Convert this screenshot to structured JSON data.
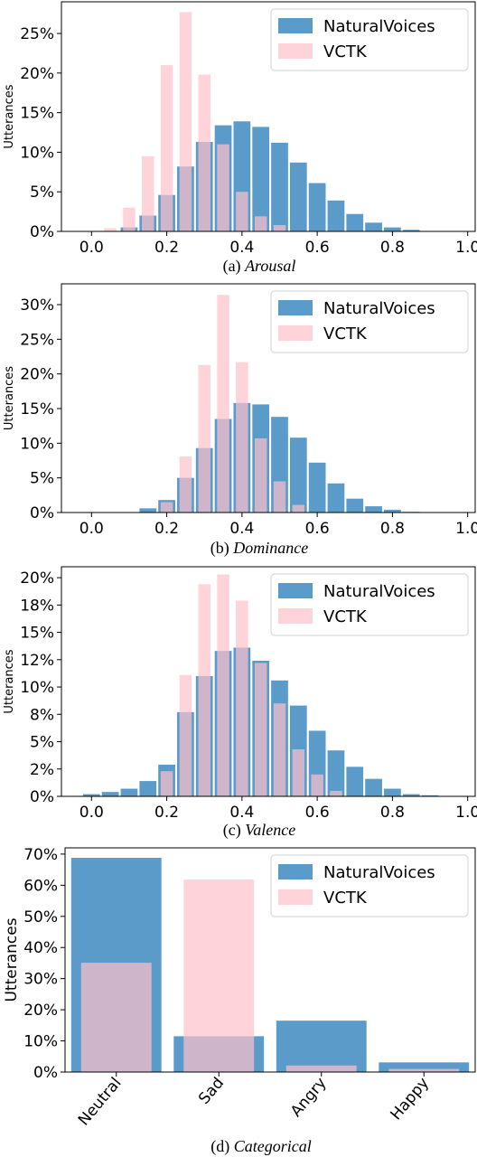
{
  "colors": {
    "natural": "#5b9bc9",
    "vctk": "#ffc0cb"
  },
  "chart_data": [
    {
      "type": "bar",
      "caption_prefix": "(a) ",
      "caption_name": "Arousal",
      "ylabel": "Utterances",
      "xticks": [
        "0.0",
        "0.2",
        "0.4",
        "0.6",
        "0.8",
        "1.0"
      ],
      "yticks": [
        "0%",
        "5%",
        "10%",
        "15%",
        "20%",
        "25%"
      ],
      "ylim": [
        0,
        29
      ],
      "xlim": [
        -0.08,
        1.02
      ],
      "legend_position": "top-right",
      "bin_width": 0.05,
      "series": [
        {
          "name": "NaturalVoices",
          "x": [
            0.1,
            0.15,
            0.2,
            0.25,
            0.3,
            0.35,
            0.4,
            0.45,
            0.5,
            0.55,
            0.6,
            0.65,
            0.7,
            0.75,
            0.8,
            0.85
          ],
          "values": [
            0.5,
            2.0,
            4.6,
            8.2,
            11.3,
            13.4,
            13.9,
            13.2,
            11.2,
            8.7,
            6.1,
            3.9,
            2.2,
            1.1,
            0.5,
            0.2
          ]
        },
        {
          "name": "VCTK",
          "x": [
            0.05,
            0.1,
            0.15,
            0.2,
            0.25,
            0.3,
            0.35,
            0.4,
            0.45,
            0.5
          ],
          "values": [
            0.4,
            3.0,
            9.5,
            21.0,
            27.7,
            19.8,
            11.0,
            5.0,
            1.9,
            0.8
          ]
        }
      ]
    },
    {
      "type": "bar",
      "caption_prefix": "(b) ",
      "caption_name": "Dominance",
      "ylabel": "Utterances",
      "xticks": [
        "0.0",
        "0.2",
        "0.4",
        "0.6",
        "0.8",
        "1.0"
      ],
      "yticks": [
        "0%",
        "5%",
        "10%",
        "15%",
        "20%",
        "25%",
        "30%"
      ],
      "ylim": [
        0,
        33
      ],
      "xlim": [
        -0.08,
        1.02
      ],
      "legend_position": "top-right",
      "bin_width": 0.05,
      "series": [
        {
          "name": "NaturalVoices",
          "x": [
            0.15,
            0.2,
            0.25,
            0.3,
            0.35,
            0.4,
            0.45,
            0.5,
            0.55,
            0.6,
            0.65,
            0.7,
            0.75,
            0.8,
            0.85
          ],
          "values": [
            0.6,
            1.8,
            5.0,
            9.3,
            13.5,
            15.8,
            15.6,
            13.8,
            10.8,
            7.2,
            4.2,
            2.0,
            0.9,
            0.4,
            0.1
          ]
        },
        {
          "name": "VCTK",
          "x": [
            0.2,
            0.25,
            0.3,
            0.35,
            0.4,
            0.45,
            0.5,
            0.55
          ],
          "values": [
            1.5,
            8.1,
            21.3,
            31.4,
            21.7,
            10.7,
            4.5,
            1.1
          ]
        }
      ]
    },
    {
      "type": "bar",
      "caption_prefix": "(c) ",
      "caption_name": "Valence",
      "ylabel": "Utterances",
      "xticks": [
        "0.0",
        "0.2",
        "0.4",
        "0.6",
        "0.8",
        "1.0"
      ],
      "yticks": [
        "0%",
        "2%",
        "5%",
        "8%",
        "10%",
        "12%",
        "15%",
        "18%",
        "20%"
      ],
      "ytick_values": [
        0,
        2.5,
        5,
        7.5,
        10,
        12.5,
        15,
        17.5,
        20
      ],
      "ylim": [
        0,
        21
      ],
      "xlim": [
        -0.08,
        1.02
      ],
      "legend_position": "top-right",
      "bin_width": 0.05,
      "series": [
        {
          "name": "NaturalVoices",
          "x": [
            0.0,
            0.05,
            0.1,
            0.15,
            0.2,
            0.25,
            0.3,
            0.35,
            0.4,
            0.45,
            0.5,
            0.55,
            0.6,
            0.65,
            0.7,
            0.75,
            0.8,
            0.85,
            0.9
          ],
          "values": [
            0.2,
            0.4,
            0.7,
            1.4,
            2.9,
            7.7,
            11.0,
            13.3,
            13.6,
            12.4,
            10.6,
            8.3,
            6.0,
            4.2,
            2.7,
            1.6,
            0.7,
            0.2,
            0.1
          ]
        },
        {
          "name": "VCTK",
          "x": [
            0.2,
            0.25,
            0.3,
            0.35,
            0.4,
            0.45,
            0.5,
            0.55,
            0.6,
            0.65
          ],
          "values": [
            2.3,
            11.1,
            19.4,
            20.3,
            17.9,
            12.2,
            8.5,
            4.3,
            2.0,
            0.5
          ]
        }
      ]
    },
    {
      "type": "bar",
      "caption_prefix": "(d) ",
      "caption_name": "Categorical",
      "ylabel": "Utterances",
      "categories": [
        "Neutral",
        "Sad",
        "Angry",
        "Happy"
      ],
      "yticks": [
        "0%",
        "10%",
        "20%",
        "30%",
        "40%",
        "50%",
        "60%",
        "70%"
      ],
      "ylim": [
        0,
        72
      ],
      "legend_position": "top-right",
      "series": [
        {
          "name": "NaturalVoices",
          "values": [
            68.8,
            11.5,
            16.5,
            3.1
          ]
        },
        {
          "name": "VCTK",
          "values": [
            35.1,
            61.8,
            2.1,
            1.0
          ]
        }
      ]
    }
  ]
}
